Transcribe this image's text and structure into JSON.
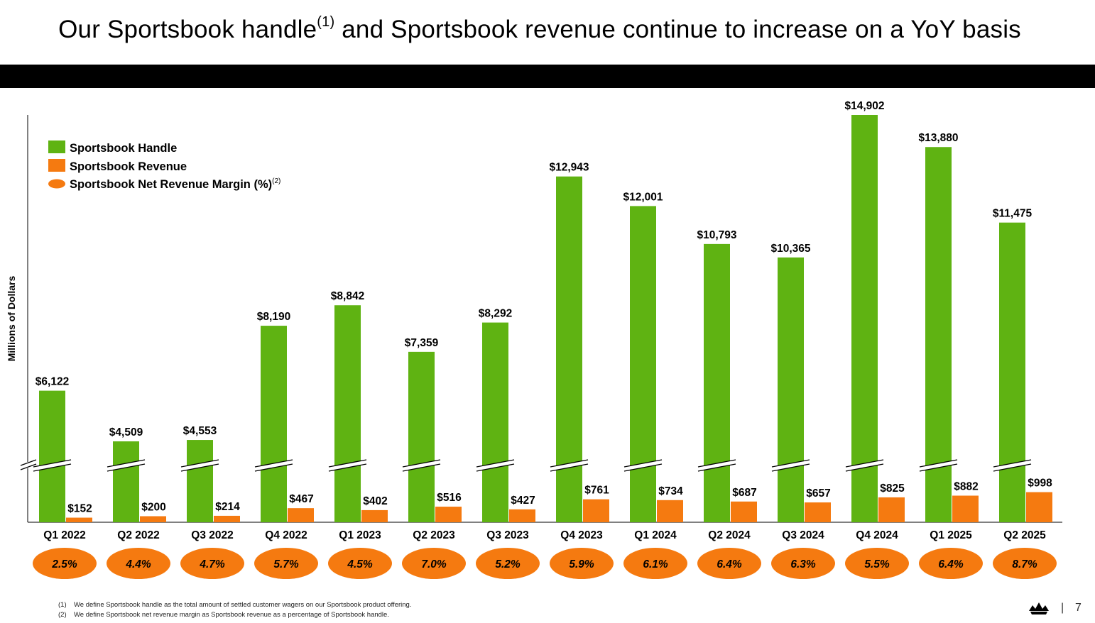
{
  "page": {
    "title_main": "Our Sportsbook handle",
    "title_sup": "(1)",
    "title_rest": " and Sportsbook revenue continue to increase on a YoY basis",
    "page_sep": "|",
    "page_number": "7",
    "logo_icon": "crown-logo-icon"
  },
  "footnotes": [
    {
      "mark": "(1)",
      "text": "We define Sportsbook handle as the total amount of settled customer wagers on our Sportsbook product offering."
    },
    {
      "mark": "(2)",
      "text": "We define Sportsbook net revenue margin as Sportsbook revenue as a percentage of Sportsbook handle."
    }
  ],
  "colors": {
    "handle": "#5fb312",
    "revenue": "#f57a10",
    "margin": "#f57a10",
    "axis": "#000000",
    "band": "#000000"
  },
  "chart_data": {
    "type": "bar",
    "ylabel": "Millions of Dollars",
    "axis_break": true,
    "categories": [
      "Q1 2022",
      "Q2 2022",
      "Q3 2022",
      "Q4 2022",
      "Q1 2023",
      "Q2 2023",
      "Q3 2023",
      "Q4 2023",
      "Q1 2024",
      "Q2 2024",
      "Q3 2024",
      "Q4 2024",
      "Q1 2025",
      "Q2 2025"
    ],
    "series": [
      {
        "name": "Sportsbook Handle",
        "values": [
          6122,
          4509,
          4553,
          8190,
          8842,
          7359,
          8292,
          12943,
          12001,
          10793,
          10365,
          14902,
          13880,
          11475
        ],
        "labels": [
          "$6,122",
          "$4,509",
          "$4,553",
          "$8,190",
          "$8,842",
          "$7,359",
          "$8,292",
          "$12,943",
          "$12,001",
          "$10,793",
          "$10,365",
          "$14,902",
          "$13,880",
          "$11,475"
        ]
      },
      {
        "name": "Sportsbook Revenue",
        "values": [
          152,
          200,
          214,
          467,
          402,
          516,
          427,
          761,
          734,
          687,
          657,
          825,
          882,
          998
        ],
        "labels": [
          "$152",
          "$200",
          "$214",
          "$467",
          "$402",
          "$516",
          "$427",
          "$761",
          "$734",
          "$687",
          "$657",
          "$825",
          "$882",
          "$998"
        ]
      },
      {
        "name": "Sportsbook Net Revenue Margin (%)",
        "name_sup": "(2)",
        "values": [
          2.5,
          4.4,
          4.7,
          5.7,
          4.5,
          7.0,
          5.2,
          5.9,
          6.1,
          6.4,
          6.3,
          5.5,
          6.4,
          8.7
        ],
        "labels": [
          "2.5%",
          "4.4%",
          "4.7%",
          "5.7%",
          "4.5%",
          "7.0%",
          "5.2%",
          "5.9%",
          "6.1%",
          "6.4%",
          "6.3%",
          "5.5%",
          "6.4%",
          "8.7%"
        ]
      }
    ],
    "legend_position": "top-left",
    "grid": false
  }
}
